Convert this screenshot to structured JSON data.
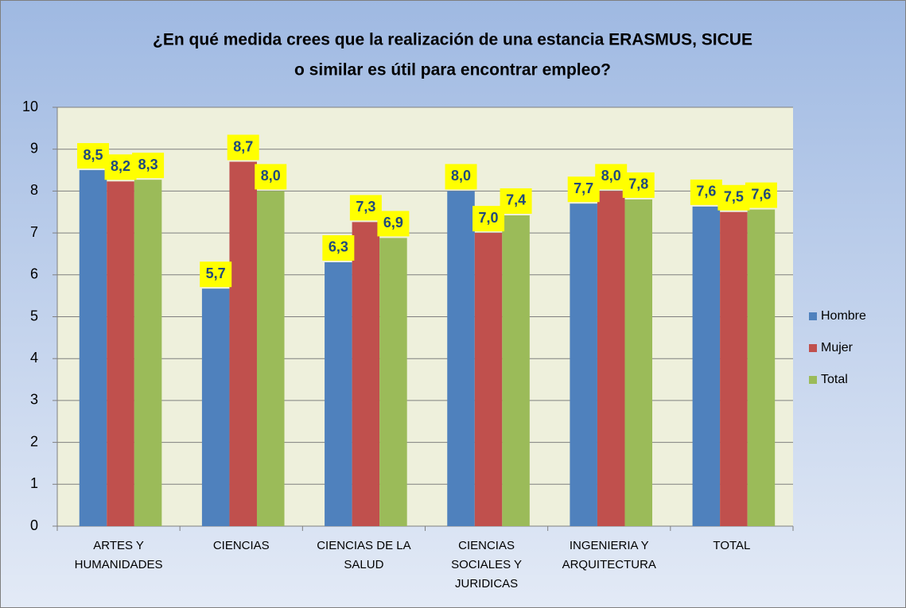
{
  "chart_data": {
    "type": "bar",
    "title": [
      "¿En qué medida crees que la realización de una estancia ERASMUS, SICUE",
      "o similar  es útil para encontrar empleo?"
    ],
    "categories": [
      [
        "ARTES Y",
        "HUMANIDADES"
      ],
      [
        "CIENCIAS"
      ],
      [
        "CIENCIAS DE LA",
        "SALUD"
      ],
      [
        "CIENCIAS",
        "SOCIALES Y",
        "JURIDICAS"
      ],
      [
        "INGENIERIA Y",
        "ARQUITECTURA"
      ],
      [
        "TOTAL"
      ]
    ],
    "series": [
      {
        "name": "Hombre",
        "color": "#4f81bd",
        "values": [
          8.5,
          5.67,
          6.3,
          8.0,
          7.7,
          7.63
        ],
        "value_labels": [
          "8,5",
          "5,7",
          "6,3",
          "8,0",
          "7,7",
          "7,6"
        ]
      },
      {
        "name": "Mujer",
        "color": "#c0504d",
        "values": [
          8.23,
          8.7,
          7.26,
          7.0,
          8.0,
          7.5
        ],
        "value_labels": [
          "8,2",
          "8,7",
          "7,3",
          "7,0",
          "8,0",
          "7,5"
        ]
      },
      {
        "name": "Total",
        "color": "#9bbb59",
        "values": [
          8.27,
          8.0,
          6.88,
          7.42,
          7.8,
          7.56
        ],
        "value_labels": [
          "8,3",
          "8,0",
          "6,9",
          "7,4",
          "7,8",
          "7,6"
        ]
      }
    ],
    "ylim": [
      0,
      10
    ],
    "yticks": [
      0,
      1,
      2,
      3,
      4,
      5,
      6,
      7,
      8,
      9,
      10
    ],
    "grid": true,
    "legend": "right"
  }
}
